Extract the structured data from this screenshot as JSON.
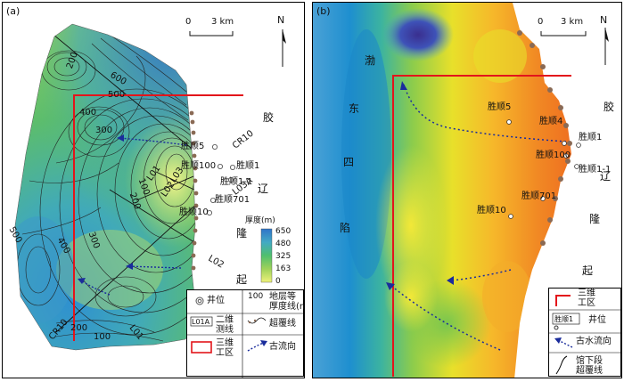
{
  "panel_a": {
    "label": "(a)",
    "scale": {
      "zero": "0",
      "value": "3 km"
    },
    "north": "N",
    "region": {
      "c1": "胶",
      "c2": "辽",
      "c3": "隆",
      "c4": "起"
    },
    "wells": [
      "胜顺5",
      "胜顺100",
      "胜顺1",
      "胜顺1-1",
      "胜顺701",
      "胜顺10"
    ],
    "lines": [
      "CR10",
      "L01",
      "L02",
      "L03",
      "L03A",
      "CR10",
      "L01",
      "L02"
    ],
    "contour_labels": [
      "200",
      "600",
      "500",
      "400",
      "300",
      "500",
      "400",
      "300",
      "200",
      "100",
      "200",
      "100"
    ],
    "thickness_legend": {
      "title": "厚度(m)",
      "ticks": [
        "650",
        "480",
        "325",
        "163",
        "0"
      ]
    },
    "legend": {
      "well": "井位",
      "isopach": "地层等\n厚度线(m)",
      "isopach_sample": "100",
      "survey_line": "二维\n测线",
      "survey_sample": "L01A",
      "overlap": "超覆线",
      "work_area": "三维\n工区",
      "paleoflow": "古流向"
    }
  },
  "panel_b": {
    "label": "(b)",
    "scale": {
      "zero": "0",
      "value": "3 km"
    },
    "north": "N",
    "depression": [
      "渤",
      "东",
      "四",
      "陷"
    ],
    "region": {
      "c1": "胶",
      "c2": "辽",
      "c3": "隆",
      "c4": "起"
    },
    "wells": [
      "胜顺5",
      "胜顺4",
      "胜顺1",
      "胜顺100",
      "胜顺1-1",
      "胜顺701",
      "胜顺10"
    ],
    "legend": {
      "work_area": "三维\n工区",
      "well": "井位",
      "well_sample": "胜顺1",
      "paleoflow": "古水流向",
      "overlap": "馆下段\n超覆线"
    }
  },
  "colors": {
    "work_area": "#e3151b",
    "paleoflow": "#1a2c9c",
    "thickness_ramp": [
      "#2f74c9",
      "#43a9c4",
      "#4fbf6e",
      "#9fd25a",
      "#eef27a"
    ]
  }
}
